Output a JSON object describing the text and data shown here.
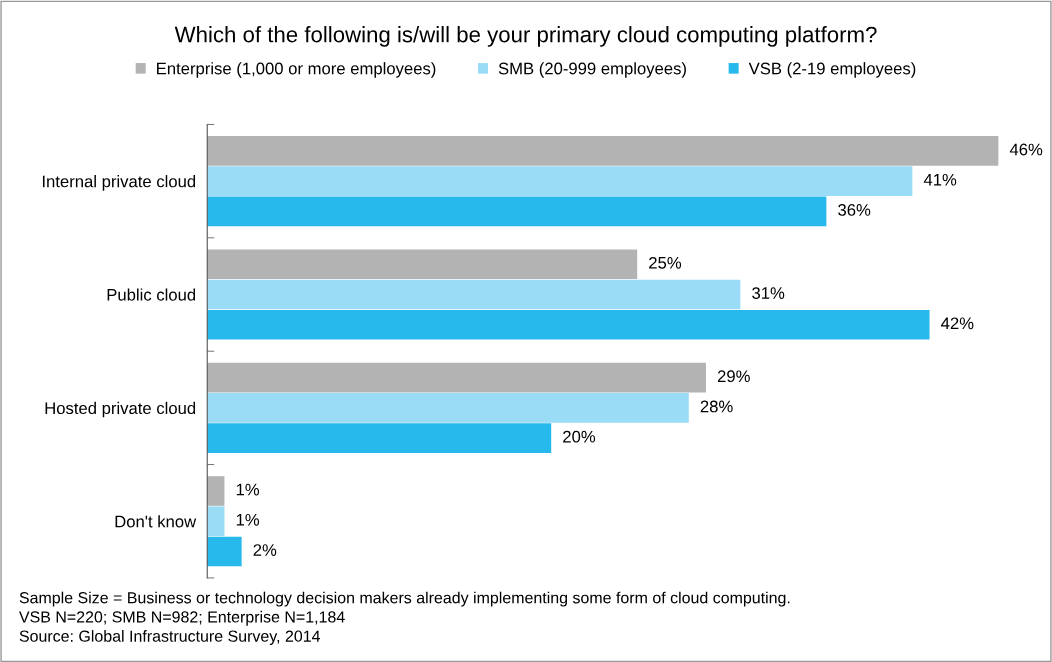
{
  "chart_data": {
    "type": "bar",
    "orientation": "horizontal",
    "title": "Which of the following is/will be your primary cloud computing platform?",
    "categories": [
      "Internal private cloud",
      "Public cloud",
      "Hosted private cloud",
      "Don't know"
    ],
    "series": [
      {
        "name": "Enterprise (1,000 or more employees)",
        "color": "#b3b3b3",
        "values": [
          46,
          25,
          29,
          1
        ],
        "value_labels": [
          "46%",
          "25%",
          "29%",
          "1%"
        ]
      },
      {
        "name": "SMB (20-999 employees)",
        "color": "#9adcf5",
        "values": [
          41,
          31,
          28,
          1
        ],
        "value_labels": [
          "41%",
          "31%",
          "28%",
          "1%"
        ]
      },
      {
        "name": "VSB (2-19 employees)",
        "color": "#27b9ec",
        "values": [
          36,
          42,
          20,
          2
        ],
        "value_labels": [
          "36%",
          "42%",
          "20%",
          "2%"
        ]
      }
    ],
    "legend": "top",
    "tick_labels": "y",
    "annotations": [
      "Sample Size = Business or technology decision makers already implementing some form of cloud computing.",
      "VSB N=220; SMB N=982; Enterprise N=1,184",
      "Source: Global Infrastructure Survey, 2014"
    ]
  }
}
